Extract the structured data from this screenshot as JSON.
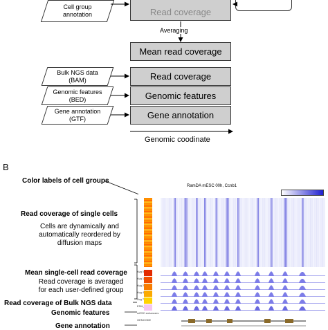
{
  "panel_a": {
    "inputs": {
      "cell_group": "Cell group\nannotation",
      "bulk_ngs": "Bulk NGS data\n(BAM)",
      "genomic_features": "Genomic features\n(BED)",
      "gene_annotation": "Gene annotation\n(GTF)"
    },
    "boxes": {
      "read_coverage_top": "Read coverage",
      "mean_read_coverage": "Mean read coverage",
      "read_coverage": "Read coverage",
      "genomic_features": "Genomic features",
      "gene_annotation": "Gene annotation"
    },
    "averaging_label": "Averaging",
    "axis_label": "Genomic coodinate"
  },
  "panel_b": {
    "letter": "B",
    "browser_title": "RamDA mESC 00h, Ccnb1",
    "track_labels": [
      "Avg 00h",
      "Avg 12h",
      "Avg 24h",
      "Avg 48h",
      "Avg 72h",
      "ESM_nl",
      "mESC enhancers",
      "GENCODE"
    ],
    "group_colors": [
      "#e32a00",
      "#f04e00",
      "#f77c00",
      "#fbaa00",
      "#ffd300",
      "#f5c6f0"
    ],
    "annotations": {
      "color_labels": "Color labels of cell groups",
      "single_cells_title": "Read coverage of single cells",
      "single_cells_desc": "Cells are dynamically and\nautomatically reordered by\ndiffusion maps",
      "mean_title": "Mean single-cell read coverage",
      "mean_desc": "Read coverage is averaged\nfor each user-defined group",
      "bulk_title": "Read coverage of Bulk NGS data",
      "features_title": "Genomic features",
      "gene_title": "Gene annotation"
    }
  }
}
